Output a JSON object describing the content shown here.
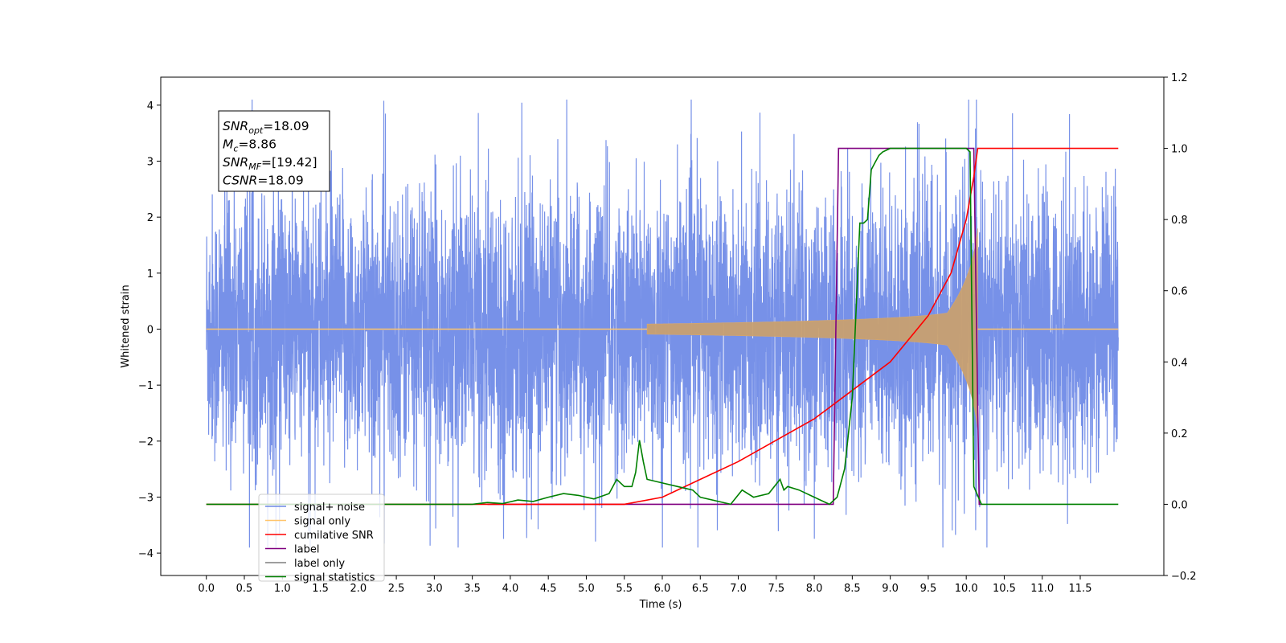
{
  "chart_data": {
    "type": "line",
    "title": "",
    "xlabel": "Time (s)",
    "ylabel": "Whitened strain",
    "xlim": [
      -0.6,
      12.6
    ],
    "ylim_left": [
      -4.4,
      4.5
    ],
    "ylim_right": [
      -0.2,
      1.2
    ],
    "x_ticks": [
      "0.0",
      "0.5",
      "1.0",
      "1.5",
      "2.0",
      "2.5",
      "3.0",
      "3.5",
      "4.0",
      "4.5",
      "5.0",
      "5.5",
      "6.0",
      "6.5",
      "7.0",
      "7.5",
      "8.0",
      "8.5",
      "9.0",
      "9.5",
      "10.0",
      "10.5",
      "11.0",
      "11.5"
    ],
    "y_ticks_left": [
      "4",
      "3",
      "2",
      "1",
      "0",
      "−1",
      "−2",
      "−3",
      "−4"
    ],
    "y_ticks_right": [
      "1.2",
      "1.0",
      "0.8",
      "0.6",
      "0.4",
      "0.2",
      "0.0",
      "−0.2"
    ],
    "grid": false,
    "legend_position": "lower-left",
    "legend": [
      {
        "name": "signal+ noise",
        "color": "#6b88e6"
      },
      {
        "name": "signal only",
        "color": "#ffc46b"
      },
      {
        "name": "cumilative SNR",
        "color": "#ff0000"
      },
      {
        "name": "label",
        "color": "#800080"
      },
      {
        "name": "label only",
        "color": "#7f7f7f"
      },
      {
        "name": "signal statistics",
        "color": "#008000"
      }
    ],
    "stats_box": [
      {
        "sym": "SNR",
        "sub": "opt",
        "val": "=18.09"
      },
      {
        "sym": "M",
        "sub": "c",
        "val": "=8.86"
      },
      {
        "sym": "SNR",
        "sub": "MF",
        "val": "=[19.42]"
      },
      {
        "sym": "CSNR",
        "sub": "",
        "val": "=18.09"
      }
    ],
    "series": [
      {
        "name": "signal+ noise",
        "axis": "left",
        "color": "#6b88e6",
        "description_range": [
          -3.9,
          4.1
        ],
        "x_start": 0.0,
        "x_end": 12.0,
        "noise_amplitude": 1.3
      },
      {
        "name": "signal only",
        "axis": "left",
        "color": "#ffc46b",
        "chirp_start": 5.8,
        "merger": 10.15,
        "peak_amplitude": 3.0
      },
      {
        "name": "cumilative SNR",
        "axis": "right",
        "color": "#ff0000",
        "x": [
          0.0,
          5.5,
          6.0,
          6.5,
          7.0,
          7.5,
          8.0,
          8.5,
          9.0,
          9.5,
          9.8,
          10.0,
          10.1,
          10.15,
          12.0
        ],
        "y": [
          0.0,
          0.0,
          0.02,
          0.07,
          0.12,
          0.18,
          0.24,
          0.32,
          0.4,
          0.53,
          0.65,
          0.8,
          0.92,
          1.0,
          1.0
        ]
      },
      {
        "name": "label",
        "axis": "right",
        "color": "#800080",
        "x": [
          3.7,
          8.25,
          8.32,
          10.1,
          10.17,
          10.2
        ],
        "y": [
          0.0,
          0.0,
          1.0,
          1.0,
          0.0,
          0.0
        ]
      },
      {
        "name": "signal statistics",
        "axis": "right",
        "color": "#008000",
        "x": [
          0.0,
          3.5,
          3.7,
          3.9,
          4.1,
          4.3,
          4.5,
          4.7,
          4.9,
          5.1,
          5.3,
          5.4,
          5.5,
          5.6,
          5.65,
          5.7,
          5.75,
          5.8,
          6.0,
          6.2,
          6.4,
          6.5,
          6.7,
          6.9,
          7.05,
          7.2,
          7.4,
          7.55,
          7.6,
          7.65,
          7.8,
          8.0,
          8.2,
          8.3,
          8.4,
          8.5,
          8.6,
          8.65,
          8.7,
          8.75,
          8.8,
          8.85,
          8.9,
          9.0,
          9.1,
          9.5,
          10.0,
          10.05,
          10.1,
          10.2,
          12.0
        ],
        "y": [
          0.0,
          0.0,
          0.005,
          0.002,
          0.012,
          0.008,
          0.02,
          0.03,
          0.025,
          0.015,
          0.03,
          0.07,
          0.05,
          0.05,
          0.09,
          0.18,
          0.12,
          0.07,
          0.06,
          0.05,
          0.04,
          0.02,
          0.01,
          0.0,
          0.04,
          0.02,
          0.03,
          0.07,
          0.04,
          0.05,
          0.04,
          0.02,
          0.0,
          0.02,
          0.1,
          0.3,
          0.79,
          0.79,
          0.8,
          0.94,
          0.96,
          0.98,
          0.99,
          1.0,
          1.0,
          1.0,
          1.0,
          0.99,
          0.05,
          0.0,
          0.0
        ]
      }
    ]
  }
}
